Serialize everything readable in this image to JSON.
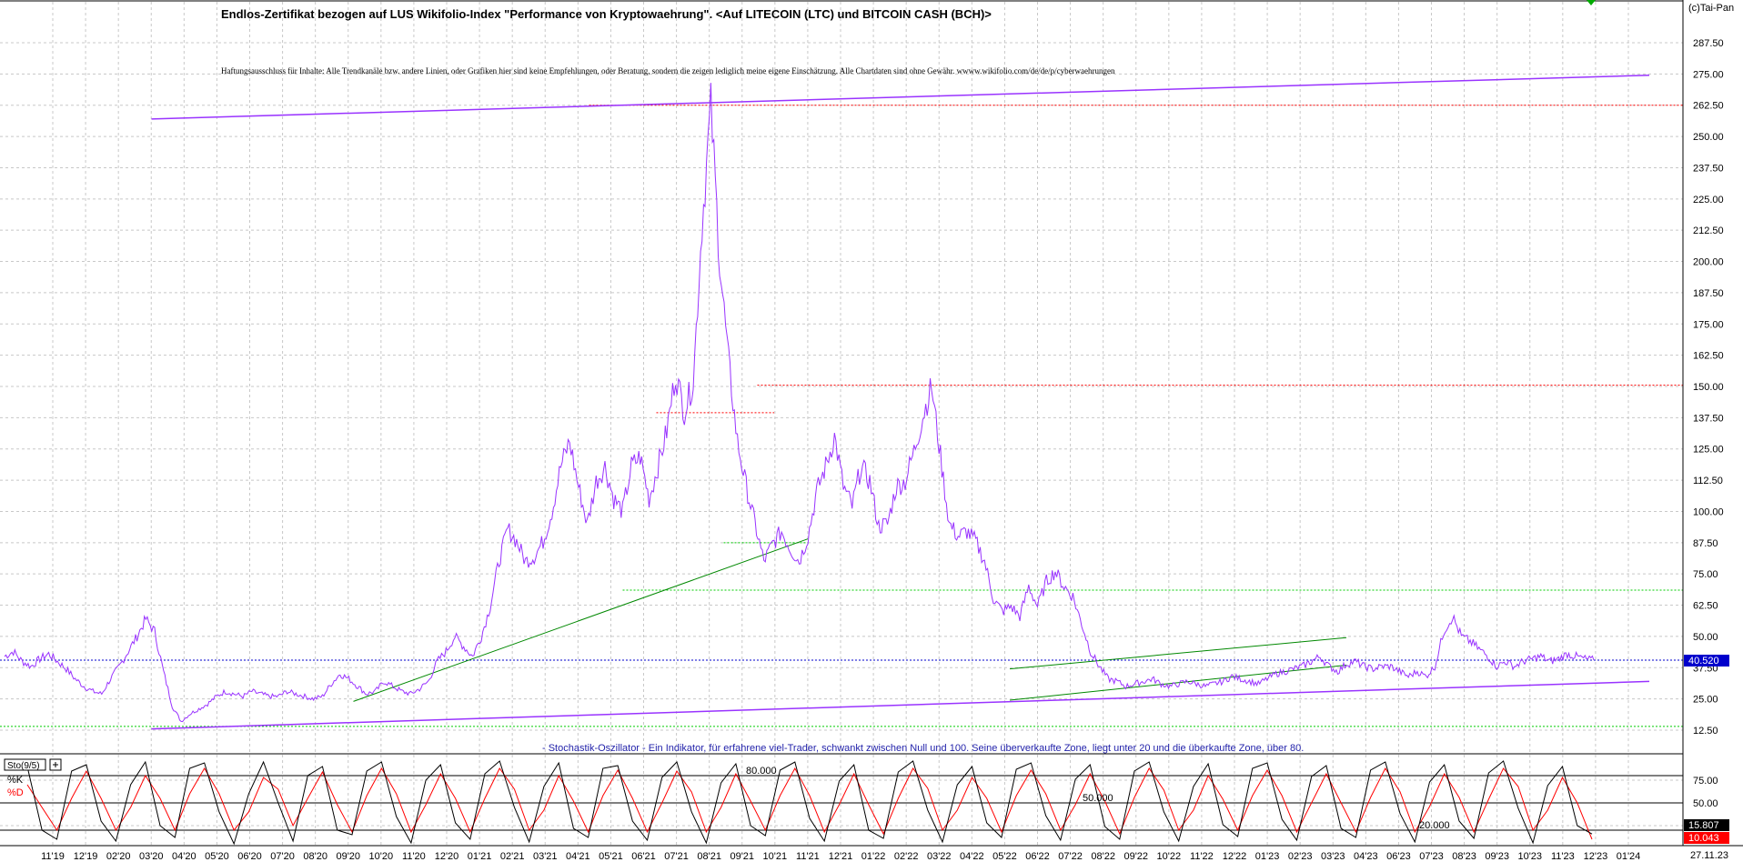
{
  "copyright": "(c)Tai-Pan",
  "title": "Endlos-Zertifikat bezogen auf LUS Wikifolio-Index \"Performance von Kryptowaehrung\". <Auf LITECOIN (LTC) und BITCOIN CASH (BCH)>",
  "disclaimer": "Haftungsausschluss für Inhalte: Alle Trendkanäle bzw. andere Linien, oder Grafiken hier sind keine Empfehlungen, oder Beratung, sondern die zeigen lediglich meine eigene Einschätzung. Alle Chartdaten sind ohne Gewähr. wwww.wikifolio.com/de/de/p/cyberwaehrungen",
  "stoch_note": "- Stochastik-Oszillator - Ein Indikator, für erfahrene viel-Trader, schwankt zwischen Null und 100. Seine überverkaufte Zone, liegt unter 20 und die überkaufte Zone, über 80.",
  "stoch_box": "Sto(9/5)",
  "stoch_k": "%K",
  "stoch_d": "%D",
  "last_date": "27.11.23",
  "price_last": "40.520",
  "k_last": "15.807",
  "d_last": "10.043",
  "colors": {
    "price": "#9933ff",
    "channel": "#9933ff",
    "trend": "#008800",
    "dotted_red": "#ff0000",
    "dotted_green": "#00cc00",
    "dotted_blue": "#0000cc",
    "k_line": "#000000",
    "d_line": "#ff0000"
  },
  "chart_data": [
    {
      "type": "line",
      "series": [
        {
          "name": "",
          "values": [
            42.0,
            44.0,
            40.0,
            38.0,
            41.0,
            43.0,
            40.0,
            37.0,
            33.0,
            30.0,
            28.0,
            27.0,
            33.0,
            38.0,
            44.0,
            50.0,
            57.0,
            52.0,
            36.0,
            22.0,
            16.0,
            19.0,
            21.0,
            23.0,
            26.0,
            28.0,
            27.0,
            26.0,
            28.0,
            27.0,
            26.0,
            26.0,
            28.0,
            27.0,
            26.0,
            25.0,
            26.0,
            31.0,
            35.0,
            33.0,
            30.0,
            27.0,
            28.0,
            32.0,
            30.0,
            28.0,
            27.0,
            29.0,
            32.0,
            40.0,
            44.0,
            50.0,
            46.0,
            42.0,
            50.0,
            62.0,
            80.0,
            93.0,
            88.0,
            80.0,
            82.0,
            88.0,
            100.0,
            118.0,
            128.0,
            110.0,
            95.0,
            112.0,
            118.0,
            105.0,
            100.0,
            118.0,
            122.0,
            105.0,
            118.0,
            132.0,
            155.0,
            140.0,
            152.0,
            215.0,
            262.0,
            200.0,
            160.0,
            128.0,
            110.0,
            95.0,
            80.0,
            87.0,
            92.0,
            85.0,
            80.0,
            90.0,
            108.0,
            118.0,
            130.0,
            110.0,
            102.0,
            118.0,
            112.0,
            94.0,
            95.0,
            110.0,
            112.0,
            124.0,
            138.0,
            150.0,
            122.0,
            95.0,
            90.0,
            92.0,
            88.0,
            80.0,
            65.0,
            60.0,
            62.0,
            58.0,
            70.0,
            62.0,
            72.0,
            76.0,
            70.0,
            66.0,
            55.0,
            44.0,
            38.0,
            33.0,
            32.0,
            30.0,
            31.0,
            32.0,
            33.0,
            31.0,
            30.0,
            31.0,
            32.0,
            31.0,
            30.0,
            31.0,
            32.0,
            34.0,
            33.0,
            32.0,
            31.0,
            33.0,
            35.0,
            36.0,
            37.0,
            38.0,
            40.0,
            42.0,
            38.0,
            36.0,
            39.0,
            40.0,
            38.0,
            37.0,
            38.0,
            38.0,
            36.0,
            34.0,
            36.0,
            34.0,
            38.0,
            52.0,
            58.0,
            50.0,
            48.0,
            45.0,
            42.0,
            38.0,
            40.0,
            38.0,
            40.0,
            41.0,
            42.0,
            40.0,
            41.0,
            43.0,
            42.0,
            41.0,
            40.5
          ]
        }
      ],
      "x_tick_labels": [
        "11'19",
        "12'19",
        "02'20",
        "03'20",
        "04'20",
        "05'20",
        "06'20",
        "07'20",
        "08'20",
        "09'20",
        "10'20",
        "11'20",
        "12'20",
        "01'21",
        "02'21",
        "03'21",
        "04'21",
        "05'21",
        "06'21",
        "07'21",
        "08'21",
        "09'21",
        "10'21",
        "11'21",
        "12'21",
        "01'22",
        "02'22",
        "03'22",
        "04'22",
        "05'22",
        "06'22",
        "07'22",
        "08'22",
        "09'22",
        "10'22",
        "11'22",
        "12'22",
        "01'23",
        "02'23",
        "03'23",
        "04'23",
        "06'23",
        "07'23",
        "08'23",
        "09'23",
        "10'23",
        "11'23",
        "12'23",
        "01'24"
      ],
      "y_tick_labels": [
        "12.50",
        "25.00",
        "37.50",
        "50.00",
        "62.50",
        "75.00",
        "87.50",
        "100.00",
        "112.50",
        "125.00",
        "137.50",
        "150.00",
        "162.50",
        "175.00",
        "187.50",
        "200.00",
        "212.50",
        "225.00",
        "237.50",
        "250.00",
        "262.50",
        "275.00",
        "287.50"
      ],
      "ylim": [
        0,
        300
      ],
      "grid": true,
      "hlines": [
        {
          "y": 262.5,
          "color": "red",
          "x_start": 0.35
        },
        {
          "y": 150.5,
          "color": "red",
          "x_start": 0.45
        },
        {
          "y": 139.5,
          "color": "red",
          "x_start": 0.39,
          "x_end": 0.46
        },
        {
          "y": 87.5,
          "color": "green",
          "x_start": 0.43,
          "x_end": 0.48
        },
        {
          "y": 68.5,
          "color": "green",
          "x_start": 0.37
        },
        {
          "y": 40.5,
          "color": "blue",
          "x_start": 0.0
        },
        {
          "y": 14.0,
          "color": "green",
          "x_start": 0.0
        }
      ],
      "trendlines": [
        {
          "color": "purple",
          "x": [
            0.09,
            0.98
          ],
          "y": [
            257.0,
            274.5
          ]
        },
        {
          "color": "purple",
          "x": [
            0.09,
            0.98
          ],
          "y": [
            13.0,
            32.0
          ]
        },
        {
          "color": "green",
          "x": [
            0.21,
            0.48
          ],
          "y": [
            24.0,
            89.0
          ]
        },
        {
          "color": "green",
          "x": [
            0.6,
            0.8
          ],
          "y": [
            37.0,
            49.5
          ]
        },
        {
          "color": "green",
          "x": [
            0.6,
            0.8
          ],
          "y": [
            24.5,
            38.5
          ]
        }
      ]
    },
    {
      "type": "line",
      "series": [
        {
          "name": "%K",
          "values": [
            90.0,
            20.0,
            10.0,
            85.0,
            92.0,
            30.0,
            8.0,
            70.0,
            95.0,
            25.0,
            12.0,
            88.0,
            94.0,
            40.0,
            5.0,
            60.0,
            95.0,
            50.0,
            8.0,
            80.0,
            90.0,
            20.0,
            15.0,
            85.0,
            95.0,
            35.0,
            6.0,
            75.0,
            92.0,
            28.0,
            10.0,
            82.0,
            96.0,
            45.0,
            7.0,
            68.0,
            94.0,
            22.0,
            12.0,
            88.0,
            91.0,
            30.0,
            9.0,
            78.0,
            95.0,
            40.0,
            6.0,
            72.0,
            93.0,
            25.0,
            14.0,
            86.0,
            95.0,
            33.0,
            8.0,
            74.0,
            92.0,
            20.0,
            11.0,
            84.0,
            96.0,
            42.0,
            7.0,
            70.0,
            90.0,
            28.0,
            12.0,
            87.0,
            94.0,
            36.0,
            9.0,
            76.0,
            92.0,
            24.0,
            10.0,
            85.0,
            95.0,
            40.0,
            8.0,
            68.0,
            93.0,
            26.0,
            13.0,
            88.0,
            94.0,
            32.0,
            9.0,
            79.0,
            91.0,
            22.0,
            12.0,
            86.0,
            95.0,
            38.0,
            7.0,
            73.0,
            92.0,
            30.0,
            11.0,
            83.0,
            96.0,
            44.0,
            6.0,
            69.0,
            90.0,
            25.0,
            15.8
          ]
        },
        {
          "name": "%D",
          "values": [
            70.0,
            45.0,
            20.0,
            55.0,
            85.0,
            55.0,
            20.0,
            45.0,
            80.0,
            55.0,
            20.0,
            60.0,
            88.0,
            60.0,
            20.0,
            40.0,
            78.0,
            65.0,
            25.0,
            55.0,
            84.0,
            48.0,
            18.0,
            58.0,
            88.0,
            60.0,
            18.0,
            48.0,
            82.0,
            55.0,
            18.0,
            55.0,
            88.0,
            65.0,
            20.0,
            42.0,
            80.0,
            52.0,
            18.0,
            58.0,
            86.0,
            55.0,
            18.0,
            50.0,
            85.0,
            62.0,
            18.0,
            45.0,
            82.0,
            52.0,
            20.0,
            58.0,
            88.0,
            58.0,
            18.0,
            48.0,
            82.0,
            48.0,
            16.0,
            55.0,
            88.0,
            66.0,
            20.0,
            42.0,
            78.0,
            55.0,
            18.0,
            58.0,
            86.0,
            60.0,
            20.0,
            48.0,
            82.0,
            52.0,
            16.0,
            56.0,
            88.0,
            64.0,
            20.0,
            42.0,
            80.0,
            54.0,
            20.0,
            58.0,
            86.0,
            58.0,
            18.0,
            50.0,
            82.0,
            50.0,
            18.0,
            56.0,
            88.0,
            62.0,
            18.0,
            46.0,
            82.0,
            56.0,
            18.0,
            54.0,
            88.0,
            68.0,
            20.0,
            42.0,
            78.0,
            50.0,
            10.0
          ]
        }
      ],
      "y_tick_labels": [
        "25.00",
        "50.00",
        "75.00"
      ],
      "ylim": [
        0,
        100
      ],
      "level_labels": [
        "80.000",
        "50.000",
        "20.000"
      ],
      "levels": [
        80,
        50,
        20
      ]
    }
  ]
}
